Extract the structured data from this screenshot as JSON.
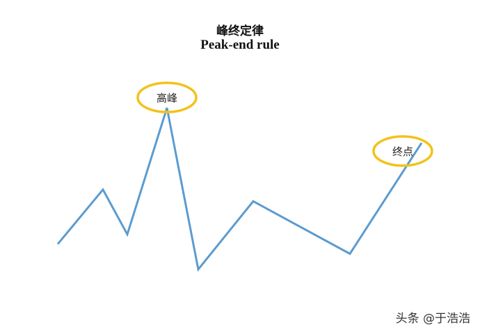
{
  "title_zh": "峰终定律",
  "title_en": "Peak-end rule",
  "labels": {
    "peak": "高峰",
    "end": "终点"
  },
  "watermark": "头条 @于浩浩",
  "colors": {
    "line": "#5b9bd0",
    "ellipse": "#f2c21b"
  },
  "line_values": [
    0.3,
    0.58,
    0.35,
    1.0,
    0.17,
    0.52,
    0.25,
    0.82
  ],
  "peak_index": 3,
  "end_index": 7
}
